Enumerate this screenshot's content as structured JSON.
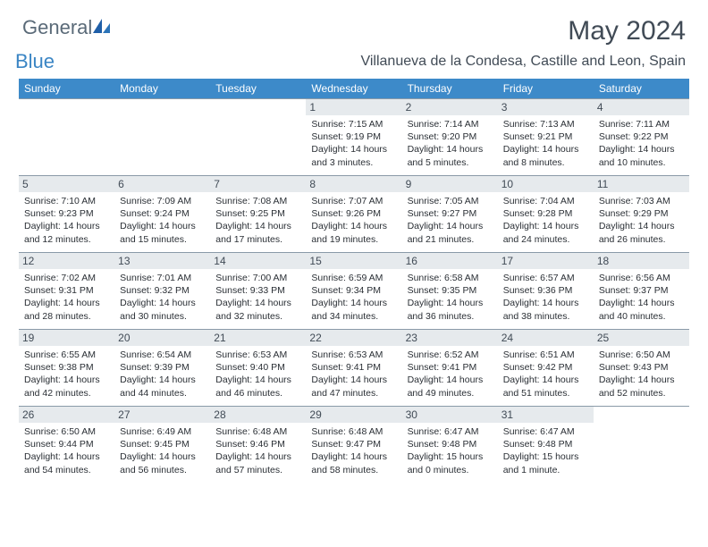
{
  "brand": {
    "general": "General",
    "blue": "Blue"
  },
  "title": "May 2024",
  "location": "Villanueva de la Condesa, Castille and Leon, Spain",
  "colors": {
    "header_bg": "#3d8ac9",
    "daynum_bg": "#e6eaed",
    "border": "#8a9aa8",
    "text": "#414b56",
    "body_text": "#2a2f35"
  },
  "dows": [
    "Sunday",
    "Monday",
    "Tuesday",
    "Wednesday",
    "Thursday",
    "Friday",
    "Saturday"
  ],
  "weeks": [
    [
      null,
      null,
      null,
      {
        "n": "1",
        "sr": "7:15 AM",
        "ss": "9:19 PM",
        "dl": "14 hours and 3 minutes."
      },
      {
        "n": "2",
        "sr": "7:14 AM",
        "ss": "9:20 PM",
        "dl": "14 hours and 5 minutes."
      },
      {
        "n": "3",
        "sr": "7:13 AM",
        "ss": "9:21 PM",
        "dl": "14 hours and 8 minutes."
      },
      {
        "n": "4",
        "sr": "7:11 AM",
        "ss": "9:22 PM",
        "dl": "14 hours and 10 minutes."
      }
    ],
    [
      {
        "n": "5",
        "sr": "7:10 AM",
        "ss": "9:23 PM",
        "dl": "14 hours and 12 minutes."
      },
      {
        "n": "6",
        "sr": "7:09 AM",
        "ss": "9:24 PM",
        "dl": "14 hours and 15 minutes."
      },
      {
        "n": "7",
        "sr": "7:08 AM",
        "ss": "9:25 PM",
        "dl": "14 hours and 17 minutes."
      },
      {
        "n": "8",
        "sr": "7:07 AM",
        "ss": "9:26 PM",
        "dl": "14 hours and 19 minutes."
      },
      {
        "n": "9",
        "sr": "7:05 AM",
        "ss": "9:27 PM",
        "dl": "14 hours and 21 minutes."
      },
      {
        "n": "10",
        "sr": "7:04 AM",
        "ss": "9:28 PM",
        "dl": "14 hours and 24 minutes."
      },
      {
        "n": "11",
        "sr": "7:03 AM",
        "ss": "9:29 PM",
        "dl": "14 hours and 26 minutes."
      }
    ],
    [
      {
        "n": "12",
        "sr": "7:02 AM",
        "ss": "9:31 PM",
        "dl": "14 hours and 28 minutes."
      },
      {
        "n": "13",
        "sr": "7:01 AM",
        "ss": "9:32 PM",
        "dl": "14 hours and 30 minutes."
      },
      {
        "n": "14",
        "sr": "7:00 AM",
        "ss": "9:33 PM",
        "dl": "14 hours and 32 minutes."
      },
      {
        "n": "15",
        "sr": "6:59 AM",
        "ss": "9:34 PM",
        "dl": "14 hours and 34 minutes."
      },
      {
        "n": "16",
        "sr": "6:58 AM",
        "ss": "9:35 PM",
        "dl": "14 hours and 36 minutes."
      },
      {
        "n": "17",
        "sr": "6:57 AM",
        "ss": "9:36 PM",
        "dl": "14 hours and 38 minutes."
      },
      {
        "n": "18",
        "sr": "6:56 AM",
        "ss": "9:37 PM",
        "dl": "14 hours and 40 minutes."
      }
    ],
    [
      {
        "n": "19",
        "sr": "6:55 AM",
        "ss": "9:38 PM",
        "dl": "14 hours and 42 minutes."
      },
      {
        "n": "20",
        "sr": "6:54 AM",
        "ss": "9:39 PM",
        "dl": "14 hours and 44 minutes."
      },
      {
        "n": "21",
        "sr": "6:53 AM",
        "ss": "9:40 PM",
        "dl": "14 hours and 46 minutes."
      },
      {
        "n": "22",
        "sr": "6:53 AM",
        "ss": "9:41 PM",
        "dl": "14 hours and 47 minutes."
      },
      {
        "n": "23",
        "sr": "6:52 AM",
        "ss": "9:41 PM",
        "dl": "14 hours and 49 minutes."
      },
      {
        "n": "24",
        "sr": "6:51 AM",
        "ss": "9:42 PM",
        "dl": "14 hours and 51 minutes."
      },
      {
        "n": "25",
        "sr": "6:50 AM",
        "ss": "9:43 PM",
        "dl": "14 hours and 52 minutes."
      }
    ],
    [
      {
        "n": "26",
        "sr": "6:50 AM",
        "ss": "9:44 PM",
        "dl": "14 hours and 54 minutes."
      },
      {
        "n": "27",
        "sr": "6:49 AM",
        "ss": "9:45 PM",
        "dl": "14 hours and 56 minutes."
      },
      {
        "n": "28",
        "sr": "6:48 AM",
        "ss": "9:46 PM",
        "dl": "14 hours and 57 minutes."
      },
      {
        "n": "29",
        "sr": "6:48 AM",
        "ss": "9:47 PM",
        "dl": "14 hours and 58 minutes."
      },
      {
        "n": "30",
        "sr": "6:47 AM",
        "ss": "9:48 PM",
        "dl": "15 hours and 0 minutes."
      },
      {
        "n": "31",
        "sr": "6:47 AM",
        "ss": "9:48 PM",
        "dl": "15 hours and 1 minute."
      },
      null
    ]
  ],
  "labels": {
    "sunrise": "Sunrise: ",
    "sunset": "Sunset: ",
    "daylight": "Daylight: "
  }
}
